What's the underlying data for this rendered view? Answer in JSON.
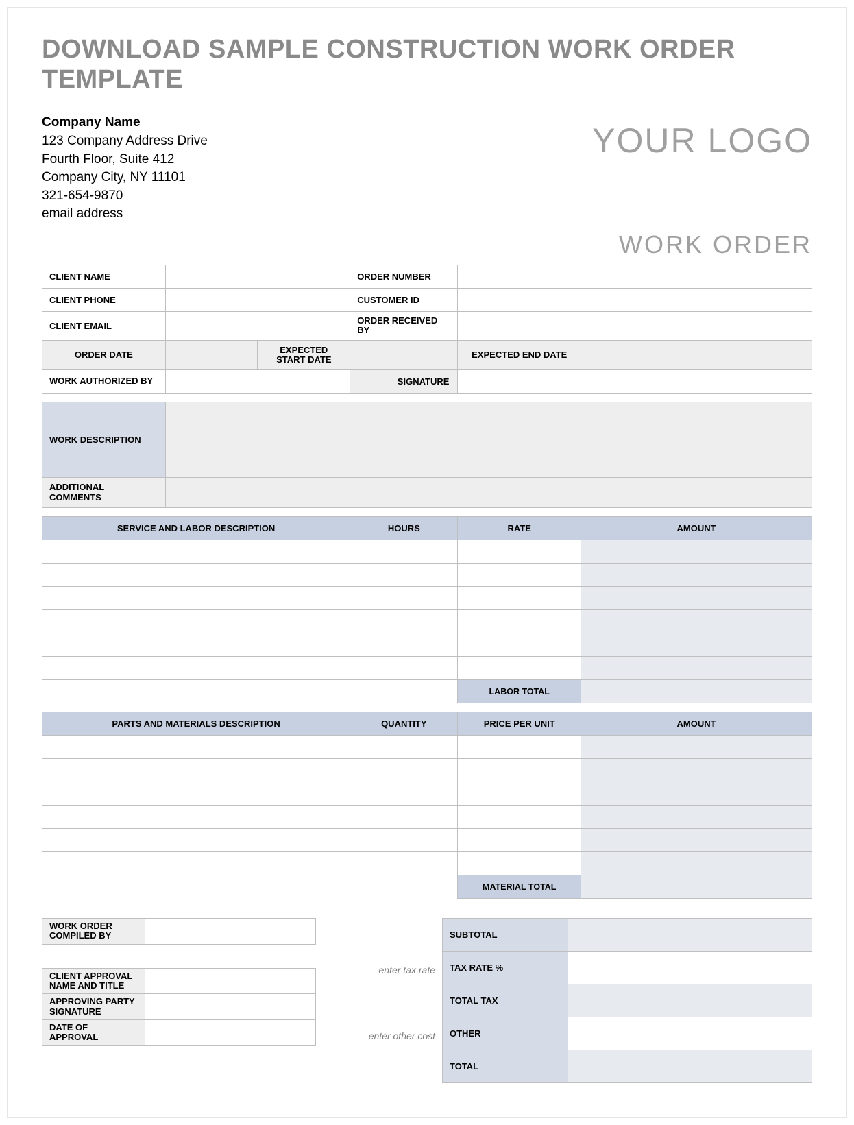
{
  "title": "DOWNLOAD SAMPLE CONSTRUCTION WORK ORDER TEMPLATE",
  "company": {
    "name": "Company Name",
    "addr1": "123 Company Address Drive",
    "addr2": "Fourth Floor, Suite 412",
    "addr3": "Company City, NY  11101",
    "phone": "321-654-9870",
    "email": "email address"
  },
  "logo_text": "YOUR LOGO",
  "doc_label": "WORK ORDER",
  "fields": {
    "client_name": "CLIENT NAME",
    "client_phone": "CLIENT PHONE",
    "client_email": "CLIENT EMAIL",
    "order_number": "ORDER NUMBER",
    "customer_id": "CUSTOMER ID",
    "order_received_by": "ORDER RECEIVED BY",
    "order_date": "ORDER DATE",
    "expected_start": "EXPECTED START DATE",
    "expected_end": "EXPECTED END DATE",
    "work_auth": "WORK AUTHORIZED BY",
    "signature": "SIGNATURE",
    "work_desc": "WORK DESCRIPTION",
    "addl_comments": "ADDITIONAL COMMENTS"
  },
  "labor": {
    "headers": [
      "SERVICE AND LABOR DESCRIPTION",
      "HOURS",
      "RATE",
      "AMOUNT"
    ],
    "row_count": 6,
    "total_label": "LABOR TOTAL"
  },
  "materials": {
    "headers": [
      "PARTS AND MATERIALS DESCRIPTION",
      "QUANTITY",
      "PRICE PER UNIT",
      "AMOUNT"
    ],
    "row_count": 6,
    "total_label": "MATERIAL TOTAL"
  },
  "compiled": {
    "work_order_compiled": "WORK ORDER COMPILED BY",
    "client_approval": "CLIENT APPROVAL NAME AND TITLE",
    "approving_sig": "APPROVING PARTY SIGNATURE",
    "date_approval": "DATE OF APPROVAL"
  },
  "hints": {
    "tax": "enter tax rate",
    "other": "enter other cost"
  },
  "summary": {
    "subtotal": "SUBTOTAL",
    "tax_rate": "TAX RATE %",
    "total_tax": "TOTAL TAX",
    "other": "OTHER",
    "total": "TOTAL"
  },
  "colors": {
    "header_blue": "#c6d0e0",
    "light_blue": "#d5dce7",
    "amount_blue": "#e7ebf0",
    "shade_grey": "#eeeeee",
    "border": "#bfbfbf",
    "title_grey": "#8a8a8a",
    "logo_grey": "#a0a0a0"
  }
}
